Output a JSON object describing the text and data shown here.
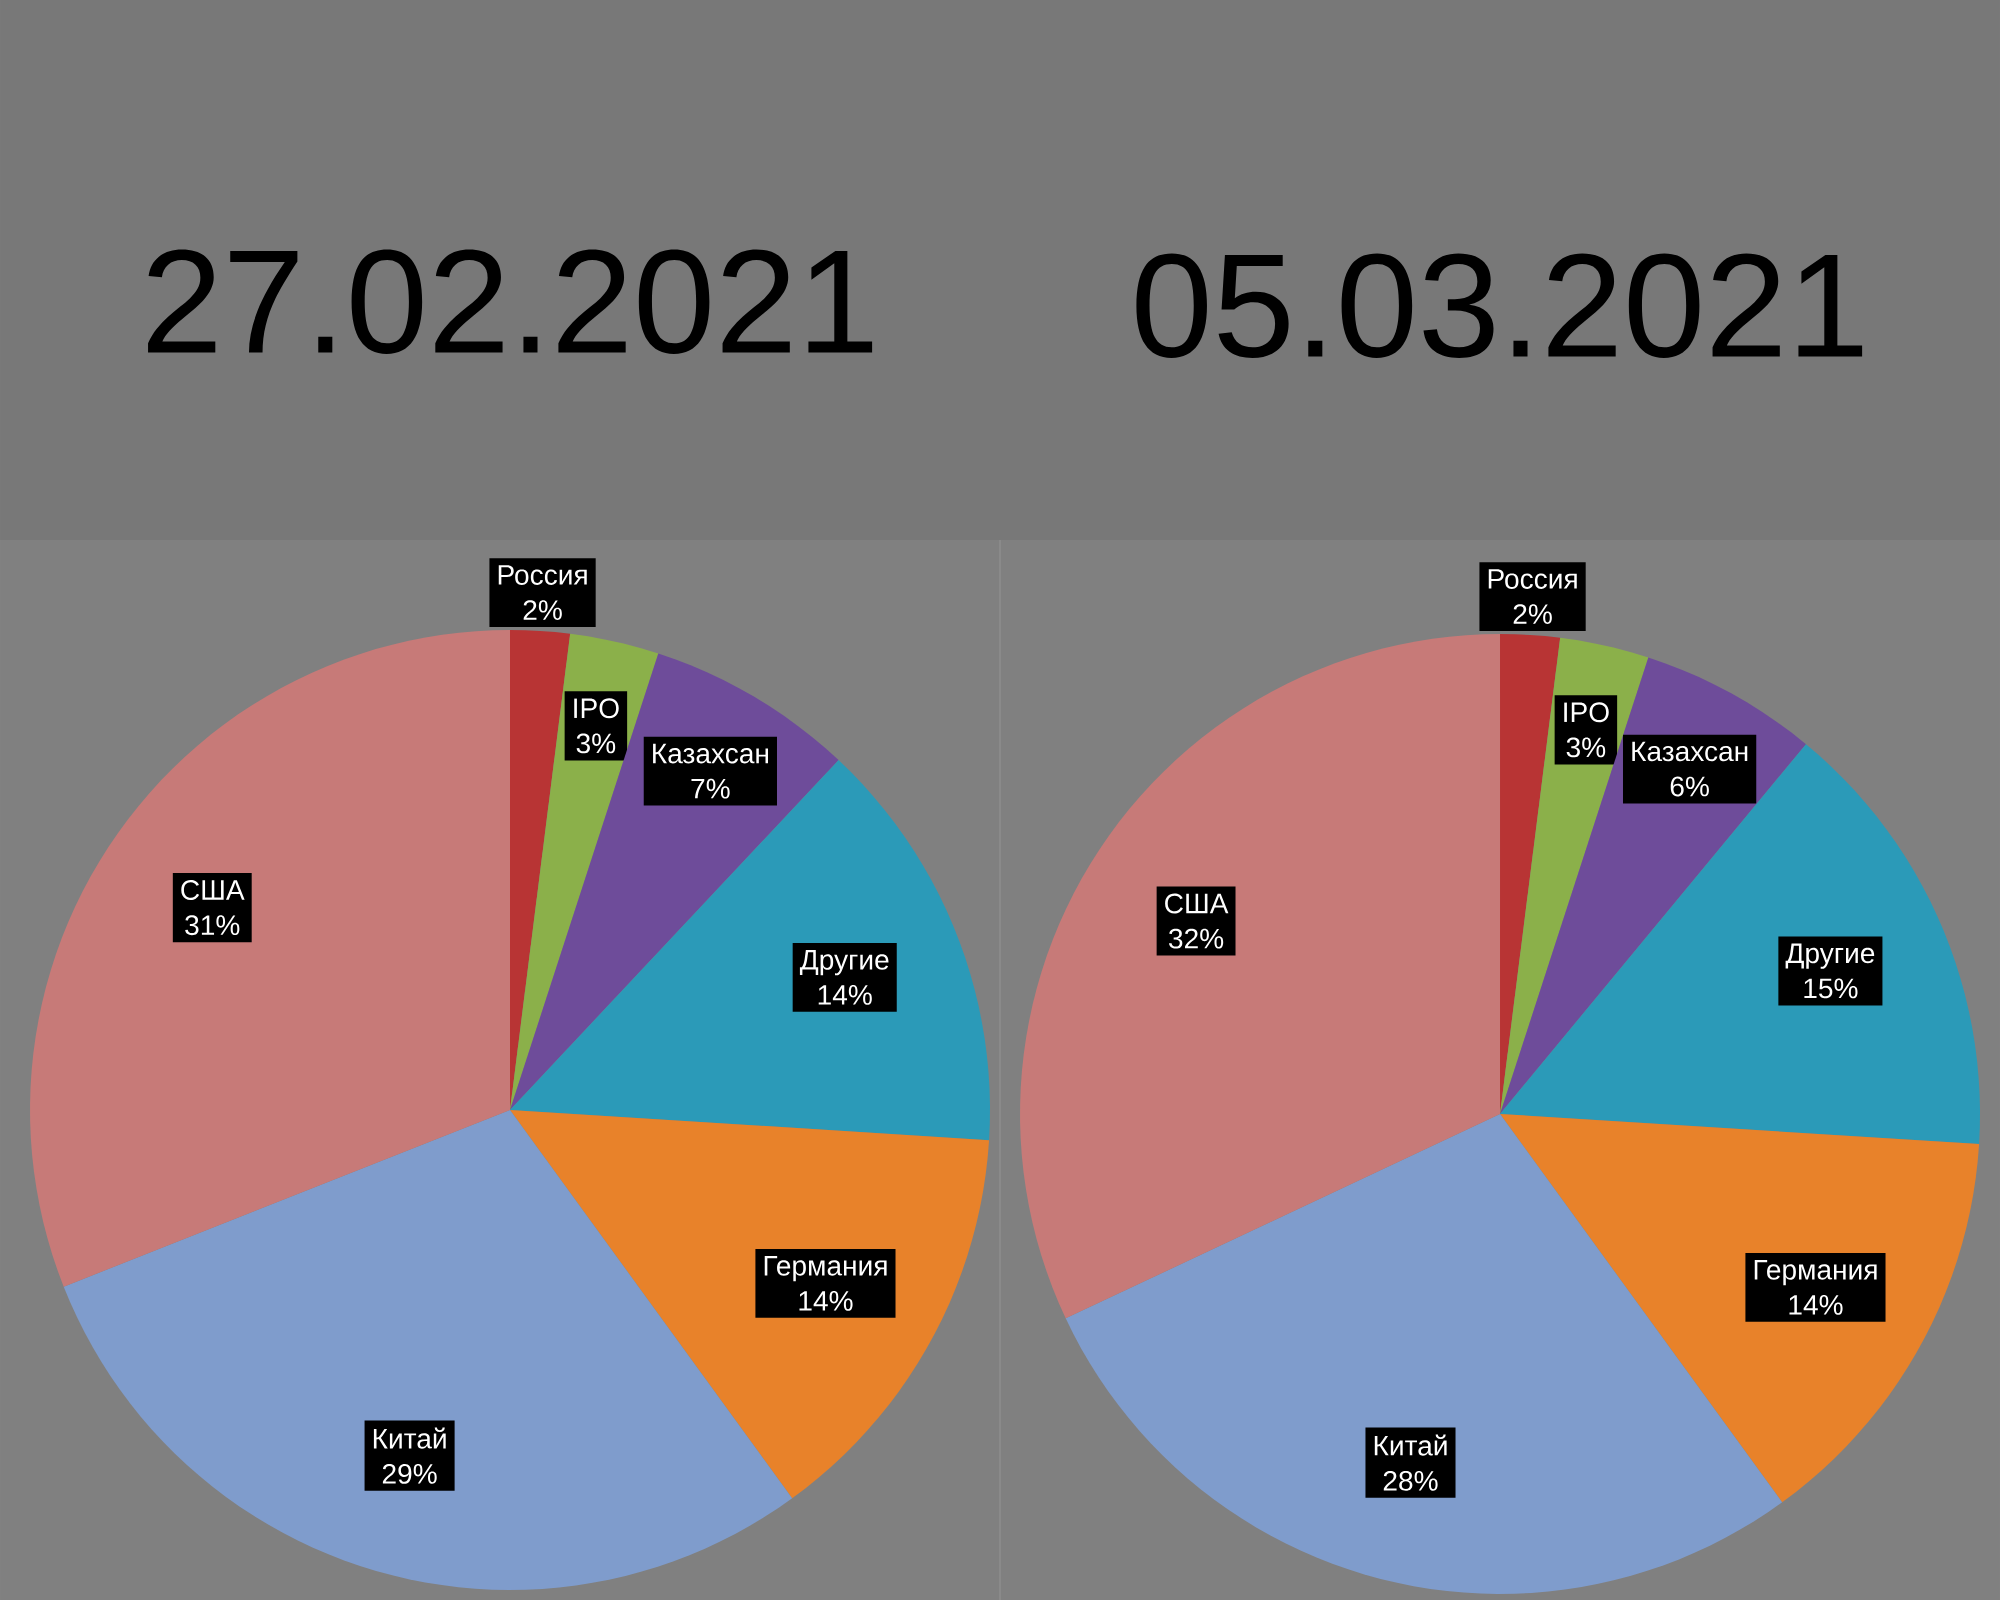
{
  "chart_data": [
    {
      "type": "pie",
      "title": "27.02.2021",
      "categories": [
        "Россия",
        "IPO",
        "Казахсан",
        "Другие",
        "Германия",
        "Китай",
        "США"
      ],
      "values": [
        2,
        3,
        7,
        14,
        14,
        29,
        31
      ],
      "colors": [
        "#b83434",
        "#8bb04a",
        "#6e4c9a",
        "#2b9ab8",
        "#e8822a",
        "#7f9ccc",
        "#c77a78"
      ],
      "value_labels": [
        "2%",
        "3%",
        "7%",
        "14%",
        "14%",
        "29%",
        "31%"
      ]
    },
    {
      "type": "pie",
      "title": "05.03.2021",
      "categories": [
        "Россия",
        "IPO",
        "Казахсан",
        "Другие",
        "Германия",
        "Китай",
        "США"
      ],
      "values": [
        2,
        3,
        6,
        15,
        14,
        28,
        32
      ],
      "colors": [
        "#b83434",
        "#8bb04a",
        "#6e4c9a",
        "#2b9ab8",
        "#e8822a",
        "#7f9ccc",
        "#c77a78"
      ],
      "value_labels": [
        "2%",
        "3%",
        "6%",
        "15%",
        "14%",
        "28%",
        "32%"
      ]
    }
  ]
}
